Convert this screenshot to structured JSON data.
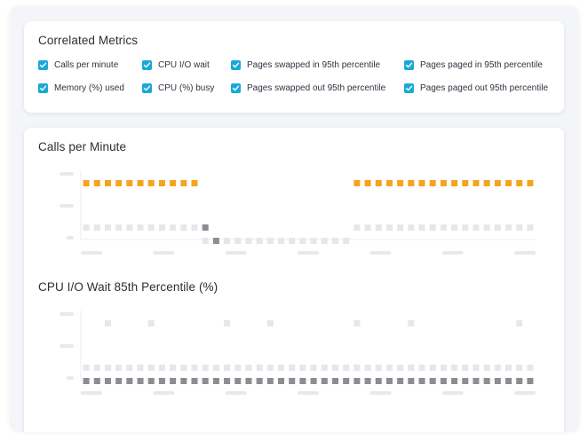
{
  "metrics_panel": {
    "title": "Correlated Metrics",
    "items": [
      {
        "label": "Calls per minute",
        "checked": true
      },
      {
        "label": "CPU I/O wait",
        "checked": true
      },
      {
        "label": "Pages swapped in 95th percentile",
        "checked": true
      },
      {
        "label": "Pages paged in 95th percentile",
        "checked": true
      },
      {
        "label": "Memory (%) used",
        "checked": true
      },
      {
        "label": "CPU (%) busy",
        "checked": true
      },
      {
        "label": "Pages swapped out 95th percentile",
        "checked": true
      },
      {
        "label": "Pages paged out 95th percentile",
        "checked": true
      }
    ]
  },
  "charts": [
    {
      "title": "Calls per Minute"
    },
    {
      "title": "CPU I/O Wait 85th Percentile (%)"
    }
  ],
  "colors": {
    "accent": "#1aa9d6",
    "orange": "#f5a41c",
    "dark_gray": "#8a8d92",
    "light_gray": "#e6e7ea",
    "placeholder": "#e8e9ec"
  },
  "chart_data": [
    {
      "type": "heatmap",
      "title": "Calls per Minute",
      "columns": 42,
      "levels": [
        "low",
        "mid",
        "high"
      ],
      "series": [
        {
          "level": "high",
          "color": "orange",
          "columns": [
            0,
            1,
            2,
            3,
            4,
            5,
            6,
            7,
            8,
            9,
            10,
            25,
            26,
            27,
            28,
            29,
            30,
            31,
            32,
            33,
            34,
            35,
            36,
            37,
            38,
            39,
            40,
            41
          ]
        },
        {
          "level": "mid",
          "color": "light_gray",
          "columns": [
            0,
            1,
            2,
            3,
            4,
            5,
            6,
            7,
            8,
            9,
            10,
            25,
            26,
            27,
            28,
            29,
            30,
            31,
            32,
            33,
            34,
            35,
            36,
            37,
            38,
            39,
            40,
            41
          ]
        },
        {
          "level": "mid",
          "color": "dark_gray",
          "columns": [
            11
          ]
        },
        {
          "level": "low",
          "color": "light_gray",
          "columns": [
            11,
            13,
            14,
            15,
            16,
            17,
            18,
            19,
            20,
            21,
            22,
            23,
            24
          ]
        },
        {
          "level": "low",
          "color": "dark_gray",
          "columns": [
            12
          ]
        }
      ],
      "x_tick_labels": [
        "",
        "",
        "",
        "",
        "",
        "",
        ""
      ],
      "y_tick_labels": [
        "",
        "",
        ""
      ]
    },
    {
      "type": "heatmap",
      "title": "CPU I/O Wait 85th Percentile (%)",
      "columns": 42,
      "levels": [
        "low",
        "mid",
        "high"
      ],
      "series": [
        {
          "level": "high",
          "color": "light_gray",
          "columns": [
            2,
            6,
            13,
            17,
            25,
            30,
            40
          ]
        },
        {
          "level": "mid",
          "color": "light_gray",
          "columns": [
            0,
            1,
            2,
            3,
            4,
            5,
            6,
            7,
            8,
            9,
            10,
            11,
            12,
            13,
            14,
            15,
            16,
            17,
            18,
            19,
            20,
            21,
            22,
            23,
            24,
            25,
            26,
            27,
            28,
            29,
            30,
            31,
            32,
            33,
            34,
            35,
            36,
            37,
            38,
            39,
            40,
            41
          ]
        },
        {
          "level": "low",
          "color": "dark_gray",
          "columns": [
            0,
            1,
            2,
            3,
            4,
            5,
            6,
            7,
            8,
            9,
            10,
            11,
            12,
            13,
            14,
            15,
            16,
            17,
            18,
            19,
            20,
            21,
            22,
            23,
            24,
            25,
            26,
            27,
            28,
            29,
            30,
            31,
            32,
            33,
            34,
            35,
            36,
            37,
            38,
            39,
            40,
            41
          ]
        }
      ],
      "x_tick_labels": [
        "",
        "",
        "",
        "",
        "",
        "",
        ""
      ],
      "y_tick_labels": [
        "",
        "",
        ""
      ]
    }
  ]
}
